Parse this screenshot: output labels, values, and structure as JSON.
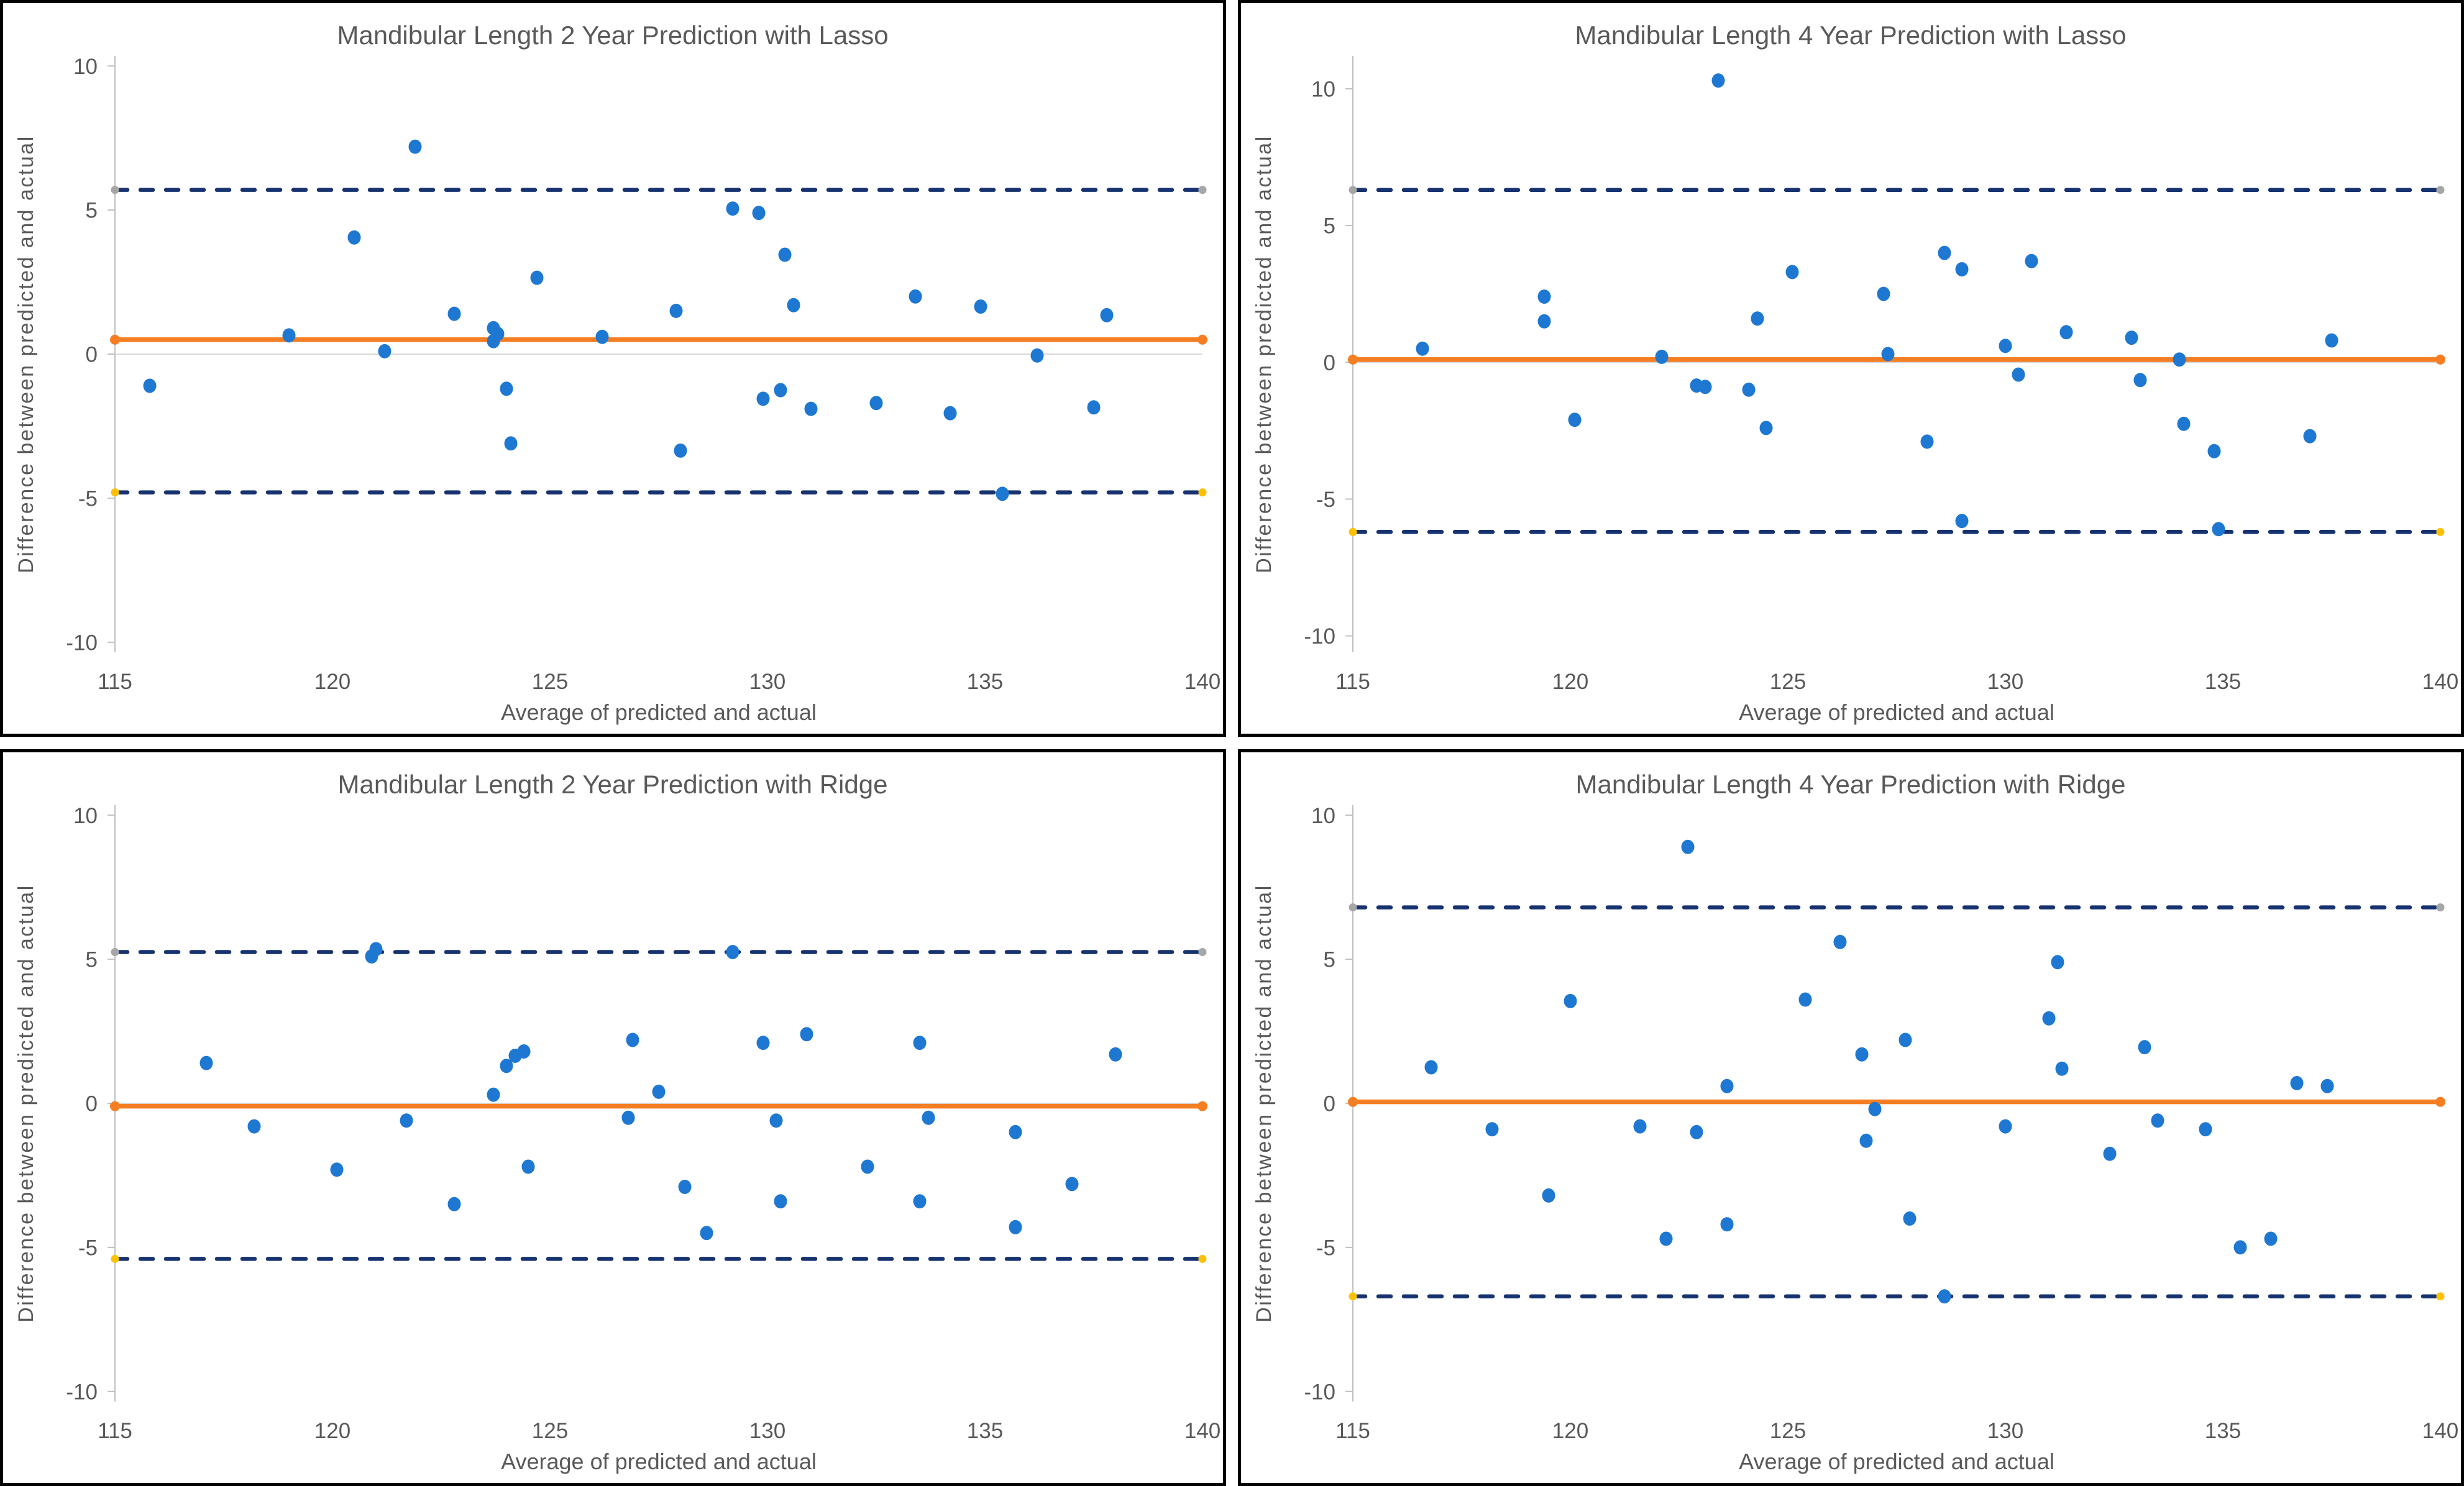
{
  "page": {
    "background": "#FFFFFF",
    "layout": "2x2 grid of Bland-Altman scatter plots"
  },
  "style": {
    "point_color": "#1E78D2",
    "mean_line_color": "#F57E22",
    "loa_line_color": "#17336F",
    "upper_marker_color": "#A6A6A6",
    "lower_marker_color": "#FFC000",
    "mean_marker_color": "#F57E22",
    "axis_line_color": "#C0C0C0",
    "zero_line_color": "#D9D9D9",
    "text_color": "#595959",
    "border_color": "#000000"
  },
  "chart_data": [
    {
      "id": "mandibular-2y-lasso",
      "type": "scatter",
      "title": "Mandibular Length 2 Year Prediction with Lasso",
      "xlabel": "Average of predicted and actual",
      "ylabel": "Difference between predicted and actual",
      "xlim": [
        115,
        140
      ],
      "ylim": [
        -10.35,
        10.35
      ],
      "xticks": [
        115,
        120,
        125,
        130,
        135,
        140
      ],
      "yticks": [
        -10,
        -5,
        0,
        5,
        10
      ],
      "grid": false,
      "legend": "none",
      "mean_line": 0.5,
      "upper_loa": 5.7,
      "lower_loa": -4.8,
      "points": [
        [
          115.8,
          -1.1
        ],
        [
          119.0,
          0.65
        ],
        [
          120.5,
          4.05
        ],
        [
          121.2,
          0.1
        ],
        [
          121.9,
          7.2
        ],
        [
          122.8,
          1.4
        ],
        [
          123.7,
          0.9
        ],
        [
          123.8,
          0.7
        ],
        [
          123.7,
          0.45
        ],
        [
          124.0,
          -1.2
        ],
        [
          124.1,
          -3.1
        ],
        [
          124.7,
          2.65
        ],
        [
          126.2,
          0.6
        ],
        [
          127.9,
          1.5
        ],
        [
          128.0,
          -3.35
        ],
        [
          129.2,
          5.05
        ],
        [
          129.8,
          4.9
        ],
        [
          129.9,
          -1.55
        ],
        [
          130.3,
          -1.25
        ],
        [
          130.4,
          3.45
        ],
        [
          130.6,
          1.7
        ],
        [
          131.0,
          -1.9
        ],
        [
          132.5,
          -1.7
        ],
        [
          133.4,
          2.0
        ],
        [
          134.2,
          -2.05
        ],
        [
          134.9,
          1.65
        ],
        [
          135.4,
          -4.85
        ],
        [
          136.2,
          -0.05
        ],
        [
          137.5,
          -1.85
        ],
        [
          137.8,
          1.35
        ]
      ]
    },
    {
      "id": "mandibular-4y-lasso",
      "type": "scatter",
      "title": "Mandibular Length 4 Year Prediction with Lasso",
      "xlabel": "Average of predicted and actual",
      "ylabel": "Difference between predicted and actual",
      "xlim": [
        115,
        140
      ],
      "ylim": [
        -10.6,
        11.2
      ],
      "xticks": [
        115,
        120,
        125,
        130,
        135,
        140
      ],
      "yticks": [
        -10,
        -5,
        0,
        5,
        10
      ],
      "grid": false,
      "legend": "none",
      "mean_line": 0.1,
      "upper_loa": 6.3,
      "lower_loa": -6.2,
      "points": [
        [
          116.6,
          0.5
        ],
        [
          119.4,
          2.4
        ],
        [
          119.4,
          1.5
        ],
        [
          120.1,
          -2.1
        ],
        [
          122.1,
          0.2
        ],
        [
          122.9,
          -0.85
        ],
        [
          123.1,
          -0.9
        ],
        [
          123.4,
          10.3
        ],
        [
          124.1,
          -1.0
        ],
        [
          124.3,
          1.6
        ],
        [
          124.5,
          -2.4
        ],
        [
          125.1,
          3.3
        ],
        [
          127.2,
          2.5
        ],
        [
          127.3,
          0.3
        ],
        [
          128.2,
          -2.9
        ],
        [
          128.6,
          4.0
        ],
        [
          129.0,
          3.4
        ],
        [
          129.0,
          -5.8
        ],
        [
          130.0,
          0.6
        ],
        [
          130.3,
          -0.45
        ],
        [
          130.6,
          3.7
        ],
        [
          131.4,
          1.1
        ],
        [
          132.9,
          0.9
        ],
        [
          133.1,
          -0.65
        ],
        [
          134.0,
          0.1
        ],
        [
          134.1,
          -2.25
        ],
        [
          134.8,
          -3.25
        ],
        [
          134.9,
          -6.1
        ],
        [
          137.0,
          -2.7
        ],
        [
          137.5,
          0.8
        ]
      ]
    },
    {
      "id": "mandibular-2y-ridge",
      "type": "scatter",
      "title": "Mandibular Length 2 Year Prediction with Ridge",
      "xlabel": "Average of predicted and actual",
      "ylabel": "Difference between predicted and actual",
      "xlim": [
        115,
        140
      ],
      "ylim": [
        -10.35,
        10.35
      ],
      "xticks": [
        115,
        120,
        125,
        130,
        135,
        140
      ],
      "yticks": [
        -10,
        -5,
        0,
        5,
        10
      ],
      "grid": false,
      "legend": "none",
      "mean_line": -0.1,
      "upper_loa": 5.25,
      "lower_loa": -5.4,
      "points": [
        [
          117.1,
          1.4
        ],
        [
          118.2,
          -0.8
        ],
        [
          120.1,
          -2.3
        ],
        [
          120.9,
          5.1
        ],
        [
          121.0,
          5.35
        ],
        [
          121.7,
          -0.6
        ],
        [
          122.8,
          -3.5
        ],
        [
          123.7,
          0.3
        ],
        [
          124.0,
          1.3
        ],
        [
          124.2,
          1.65
        ],
        [
          124.4,
          1.8
        ],
        [
          124.5,
          -2.2
        ],
        [
          126.8,
          -0.5
        ],
        [
          126.9,
          2.2
        ],
        [
          127.5,
          0.4
        ],
        [
          128.1,
          -2.9
        ],
        [
          128.6,
          -4.5
        ],
        [
          129.2,
          5.25
        ],
        [
          129.9,
          2.1
        ],
        [
          130.2,
          -0.6
        ],
        [
          130.3,
          -3.4
        ],
        [
          130.9,
          2.4
        ],
        [
          132.3,
          -2.2
        ],
        [
          133.5,
          2.1
        ],
        [
          133.5,
          -3.4
        ],
        [
          133.7,
          -0.5
        ],
        [
          135.7,
          -1.0
        ],
        [
          135.7,
          -4.3
        ],
        [
          137.0,
          -2.8
        ],
        [
          138.0,
          1.7
        ]
      ]
    },
    {
      "id": "mandibular-4y-ridge",
      "type": "scatter",
      "title": "Mandibular Length 4 Year Prediction with Ridge",
      "xlabel": "Average of predicted and actual",
      "ylabel": "Difference between predicted and actual",
      "xlim": [
        115,
        140
      ],
      "ylim": [
        -10.35,
        10.35
      ],
      "xticks": [
        115,
        120,
        125,
        130,
        135,
        140
      ],
      "yticks": [
        -10,
        -5,
        0,
        5,
        10
      ],
      "grid": false,
      "legend": "none",
      "mean_line": 0.05,
      "upper_loa": 6.8,
      "lower_loa": -6.7,
      "points": [
        [
          116.8,
          1.25
        ],
        [
          118.2,
          -0.9
        ],
        [
          119.5,
          -3.2
        ],
        [
          120.0,
          3.55
        ],
        [
          121.6,
          -0.8
        ],
        [
          122.2,
          -4.7
        ],
        [
          122.7,
          8.9
        ],
        [
          122.9,
          -1.0
        ],
        [
          123.6,
          0.6
        ],
        [
          123.6,
          -4.2
        ],
        [
          125.4,
          3.6
        ],
        [
          126.2,
          5.6
        ],
        [
          126.7,
          1.7
        ],
        [
          126.8,
          -1.3
        ],
        [
          127.0,
          -0.2
        ],
        [
          127.7,
          2.2
        ],
        [
          127.8,
          -4.0
        ],
        [
          128.6,
          -6.7
        ],
        [
          130.0,
          -0.8
        ],
        [
          131.0,
          2.95
        ],
        [
          131.2,
          4.9
        ],
        [
          131.3,
          1.2
        ],
        [
          132.4,
          -1.75
        ],
        [
          133.2,
          1.95
        ],
        [
          133.5,
          -0.6
        ],
        [
          134.6,
          -0.9
        ],
        [
          135.4,
          -5.0
        ],
        [
          136.1,
          -4.7
        ],
        [
          136.7,
          0.7
        ],
        [
          137.4,
          0.6
        ]
      ]
    }
  ]
}
